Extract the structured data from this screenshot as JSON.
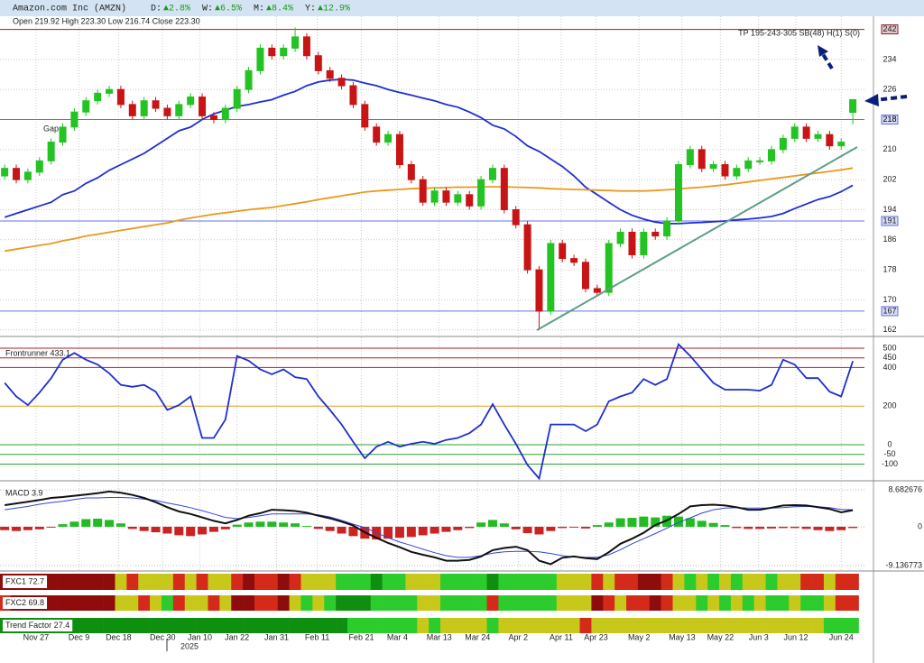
{
  "chart_data": [
    {
      "type": "candlestick",
      "title": "Amazon.com Inc (AMZN)",
      "changes": [
        {
          "period": "D:",
          "change": "▲2.8%"
        },
        {
          "period": "W:",
          "change": "▲6.5%"
        },
        {
          "period": "M:",
          "change": "▲8.4%"
        },
        {
          "period": "Y:",
          "change": "▲12.9%"
        }
      ],
      "ohlc_text": "Open 219.92  High 223.30  Low 216.74  Close 223.30",
      "annotations": [
        "Gap",
        "TP 195-243-305 SB(48) H(1) S(0)"
      ],
      "year_label": "2025",
      "up_color": "#22c322",
      "down_color": "#c81414",
      "open": [
        203,
        205,
        202,
        204,
        207,
        212,
        216,
        220,
        223,
        225,
        226,
        222,
        219,
        223,
        221,
        219,
        222,
        224,
        219,
        218,
        221,
        226,
        231,
        237,
        235,
        237,
        240,
        235,
        231,
        229,
        227,
        222,
        216,
        212,
        214,
        206,
        202,
        196,
        199,
        196,
        198,
        195,
        202,
        205,
        194,
        190,
        178,
        167,
        185,
        181,
        180,
        173,
        172,
        185,
        188,
        182,
        188,
        187,
        191,
        206,
        210,
        205,
        206,
        203,
        205,
        207,
        207,
        210,
        213,
        216,
        213,
        214,
        211,
        219.92
      ],
      "high": [
        206,
        206,
        205,
        208,
        213,
        217,
        221,
        224,
        226,
        227,
        227,
        223,
        224,
        224,
        222,
        223,
        225,
        225,
        220,
        222,
        227,
        232,
        238,
        238,
        238,
        242.5,
        241,
        236,
        232,
        230,
        228,
        223,
        217,
        215,
        215,
        207,
        203,
        200,
        200,
        199,
        199,
        203,
        206,
        206,
        195,
        191,
        179,
        186,
        186,
        182,
        181,
        174,
        186,
        189,
        189,
        189,
        189,
        192,
        207,
        211,
        211,
        207,
        207,
        206,
        208,
        208,
        211,
        214,
        217,
        217,
        215,
        215,
        213,
        223.3
      ],
      "low": [
        202,
        201,
        201,
        203,
        206,
        211,
        215,
        219,
        222,
        224,
        221,
        218,
        218,
        220,
        218,
        218,
        221,
        218,
        217,
        217,
        220,
        225,
        230,
        234,
        234,
        236,
        234,
        230,
        228,
        226,
        221,
        215,
        211,
        211,
        205,
        201,
        195,
        195,
        195,
        195,
        194,
        194,
        201,
        193,
        189,
        177,
        162,
        166,
        180,
        179,
        172,
        171,
        171,
        184,
        181,
        181,
        186,
        186,
        190,
        205,
        204,
        204,
        202,
        202,
        204,
        206,
        206,
        209,
        212,
        212,
        212,
        210,
        210,
        216.74
      ],
      "close": [
        205,
        202,
        204,
        207,
        212,
        216,
        220,
        223,
        225,
        226,
        222,
        219,
        223,
        221,
        219,
        222,
        224,
        219,
        218,
        221,
        226,
        231,
        237,
        235,
        237,
        240,
        235,
        231,
        229,
        227,
        222,
        216,
        212,
        214,
        206,
        202,
        196,
        199,
        196,
        198,
        195,
        202,
        205,
        194,
        190,
        178,
        167,
        185,
        181,
        180,
        173,
        172,
        185,
        188,
        182,
        188,
        187,
        191,
        206,
        210,
        205,
        206,
        203,
        205,
        207,
        207,
        210,
        213,
        216,
        213,
        214,
        211,
        212,
        223.3
      ],
      "moving_averages": [
        {
          "color": "#1f2fd0",
          "values": [
            192,
            193,
            194,
            195,
            196,
            198,
            199,
            201,
            202.5,
            204.5,
            206,
            207.5,
            209,
            211,
            213,
            215,
            216,
            218,
            219.5,
            220.5,
            221.5,
            222,
            222.7,
            223.3,
            224.5,
            225.5,
            227,
            228,
            228.5,
            228.7,
            228.5,
            227.7,
            227,
            226,
            225.2,
            224.5,
            223.7,
            223,
            222,
            221.3,
            220,
            218.5,
            216.5,
            215.5,
            213.5,
            211,
            209.5,
            207.5,
            205.5,
            203,
            200,
            198,
            196,
            194,
            192.5,
            191.5,
            190.7,
            190.3,
            190.3,
            190.5,
            190.6,
            190.8,
            191,
            191.3,
            191.5,
            191.8,
            192.2,
            193,
            194.3,
            195.5,
            196.7,
            197.5,
            198.8,
            200.5
          ]
        },
        {
          "color": "#e89a20",
          "values": [
            183,
            183.5,
            184,
            184.5,
            185,
            185.7,
            186.3,
            187,
            187.5,
            188,
            188.5,
            189,
            189.5,
            190,
            190.5,
            191.2,
            191.8,
            192.3,
            192.8,
            193.2,
            193.6,
            194,
            194.3,
            194.6,
            195.1,
            195.6,
            196.1,
            196.7,
            197.2,
            197.7,
            198.2,
            198.7,
            199,
            199.2,
            199.4,
            199.6,
            199.7,
            199.8,
            199.9,
            200,
            200,
            200.1,
            200.1,
            200.1,
            200,
            199.9,
            199.8,
            199.6,
            199.5,
            199.4,
            199.3,
            199.2,
            199.1,
            199,
            199,
            199,
            199.1,
            199.3,
            199.5,
            199.8,
            200,
            200.3,
            200.6,
            201,
            201.4,
            201.8,
            202.2,
            202.6,
            203,
            203.4,
            203.8,
            204.2,
            204.6,
            205.1
          ]
        }
      ],
      "levels": [
        {
          "value": 242,
          "color": "#8b2030"
        },
        {
          "value": 218,
          "color": "#6070e0"
        },
        {
          "value": 191,
          "color": "#6070e0"
        },
        {
          "value": 167,
          "color": "#6070e0"
        }
      ],
      "xlim": [
        -0.4,
        74
      ],
      "xticks": [
        {
          "value": 2.7,
          "label": "Nov 27"
        },
        {
          "value": 6.4,
          "label": "Dec 9"
        },
        {
          "value": 9.8,
          "label": "Dec 18"
        },
        {
          "value": 13.6,
          "label": "Dec 30"
        },
        {
          "value": 16.8,
          "label": "Jan 10"
        },
        {
          "value": 20,
          "label": "Jan 22"
        },
        {
          "value": 23.4,
          "label": "Jan 31"
        },
        {
          "value": 26.9,
          "label": "Feb 11"
        },
        {
          "value": 30.7,
          "label": "Feb 21"
        },
        {
          "value": 33.8,
          "label": "Mar 4"
        },
        {
          "value": 37.4,
          "label": "Mar 13"
        },
        {
          "value": 40.7,
          "label": "Mar 24"
        },
        {
          "value": 44.2,
          "label": "Apr 2"
        },
        {
          "value": 47.9,
          "label": "Apr 11"
        },
        {
          "value": 50.9,
          "label": "Apr 23"
        },
        {
          "value": 54.6,
          "label": "May 2"
        },
        {
          "value": 58.3,
          "label": "May 13"
        },
        {
          "value": 61.6,
          "label": "May 22"
        },
        {
          "value": 64.9,
          "label": "Jun 3"
        },
        {
          "value": 68.1,
          "label": "Jun 12"
        },
        {
          "value": 72,
          "label": "Jun 24"
        }
      ],
      "ylim": [
        160.5,
        245.5
      ],
      "yticks": [
        162,
        170,
        178,
        186,
        194,
        202,
        210,
        218,
        226,
        234
      ],
      "grid": true
    },
    {
      "type": "line",
      "title": "Frontrunner 433.1",
      "color": "#1f2fd0",
      "values": [
        320,
        250,
        205,
        270,
        345,
        440,
        475,
        440,
        415,
        370,
        310,
        300,
        310,
        275,
        180,
        205,
        250,
        35,
        35,
        130,
        460,
        435,
        390,
        365,
        390,
        350,
        340,
        250,
        180,
        105,
        15,
        -70,
        -10,
        15,
        -10,
        5,
        15,
        5,
        25,
        35,
        60,
        105,
        210,
        105,
        5,
        -105,
        -175,
        105,
        105,
        105,
        70,
        105,
        225,
        250,
        270,
        340,
        310,
        340,
        520,
        460,
        390,
        320,
        285,
        285,
        285,
        280,
        310,
        440,
        415,
        345,
        345,
        275,
        250,
        433.1
      ],
      "ylim": [
        -182,
        556
      ],
      "yticks": [
        500,
        450,
        400,
        200,
        0,
        -50,
        -100
      ],
      "tick_colors": [
        "#b02020",
        "#b02020",
        "#b02020",
        "#e0a020",
        "#30a030",
        "#30a030",
        "#30a030"
      ]
    },
    {
      "type": "macd",
      "title": "MACD 3.9",
      "macd_color": "#111111",
      "signal_color": "#3344dd",
      "positive_color": "#22bb22",
      "negative_color": "#cc2222",
      "macd": [
        5.1,
        5.5,
        5.9,
        6.3,
        6.8,
        7.0,
        7.3,
        7.6,
        7.9,
        8.3,
        8.0,
        7.5,
        6.8,
        5.8,
        4.6,
        3.6,
        3.0,
        2.2,
        1.4,
        0.8,
        1.6,
        2.6,
        3.2,
        4.0,
        3.9,
        3.7,
        3.3,
        2.6,
        2.0,
        1.2,
        0.3,
        -1.3,
        -2.6,
        -3.8,
        -4.8,
        -5.9,
        -6.6,
        -7.2,
        -8.0,
        -8.0,
        -7.8,
        -7.0,
        -5.5,
        -5.0,
        -4.7,
        -5.5,
        -8.0,
        -8.8,
        -7.3,
        -7.0,
        -7.4,
        -7.6,
        -6.0,
        -4.0,
        -2.8,
        -1.4,
        0.4,
        1.5,
        3.0,
        4.8,
        5.1,
        5.2,
        5.0,
        4.6,
        4.0,
        4.0,
        4.5,
        5.0,
        5.1,
        5.0,
        4.6,
        4.2,
        3.4,
        3.9
      ],
      "signal": [
        4.0,
        4.4,
        4.8,
        5.3,
        5.7,
        6.0,
        6.4,
        6.8,
        6.8,
        6.9,
        6.9,
        6.8,
        6.5,
        6.2,
        5.6,
        5.1,
        4.5,
        3.8,
        3.0,
        2.2,
        1.9,
        2.2,
        2.6,
        3.0,
        3.0,
        3.0,
        3.0,
        2.8,
        2.3,
        1.5,
        0.6,
        -0.2,
        -1.4,
        -2.6,
        -3.6,
        -4.4,
        -5.3,
        -6.1,
        -6.8,
        -7.2,
        -7.2,
        -6.8,
        -6.2,
        -5.9,
        -5.8,
        -5.8,
        -5.9,
        -6.3,
        -6.8,
        -7.1,
        -7.2,
        -7.2,
        -6.6,
        -5.4,
        -4.0,
        -2.8,
        -1.6,
        -0.3,
        1.0,
        2.1,
        3.2,
        4.0,
        4.4,
        4.5,
        4.4,
        4.4,
        4.4,
        4.5,
        4.7,
        4.8,
        4.7,
        4.5,
        4.1,
        4.0
      ],
      "histogram": [
        -0.8,
        -1,
        -0.8,
        -0.6,
        -0.2,
        0.6,
        1.2,
        1.8,
        1.9,
        1.6,
        0.8,
        -0.5,
        -1.0,
        -1.3,
        -1.6,
        -2.0,
        -2.2,
        -1.8,
        -1.2,
        -0.6,
        0.5,
        1.0,
        1.2,
        1.2,
        1.0,
        0.8,
        0.2,
        -0.5,
        -1.0,
        -1.6,
        -2.2,
        -2.8,
        -3.0,
        -2.8,
        -2.6,
        -2.4,
        -2.0,
        -1.6,
        -1.2,
        -0.8,
        -0.3,
        1.0,
        1.6,
        0.8,
        -0.6,
        -1.5,
        -1.8,
        -1.0,
        -0.3,
        -0.2,
        -0.4,
        0.4,
        1.0,
        2.0,
        2.1,
        2.4,
        2.2,
        2.6,
        2.4,
        2.0,
        1.4,
        0.9,
        0.4,
        -0.3,
        -0.5,
        -0.5,
        -0.4,
        -0.3,
        -0.3,
        -0.5,
        -0.8,
        -1.0,
        -0.8,
        -0.3
      ],
      "ylim": [
        -10.2,
        10.4
      ],
      "yticks": [
        8.682676,
        0,
        -9.136773
      ]
    },
    {
      "type": "heatmap",
      "palette": [
        "#8e0c0c",
        "#d42a1a",
        "#c8c81a",
        "#2ccc2c",
        "#0f8f0f"
      ],
      "rows": [
        {
          "name": "FXC1 72.7",
          "levels": [
            0,
            0,
            0,
            0,
            0,
            0,
            0,
            0,
            0,
            0,
            2,
            1,
            2,
            2,
            2,
            1,
            2,
            1,
            2,
            2,
            1,
            0,
            1,
            1,
            0,
            1,
            2,
            2,
            2,
            3,
            3,
            3,
            4,
            3,
            3,
            2,
            2,
            2,
            3,
            3,
            3,
            3,
            4,
            3,
            3,
            3,
            3,
            3,
            2,
            2,
            2,
            1,
            2,
            1,
            1,
            0,
            0,
            1,
            2,
            3,
            2,
            3,
            2,
            3,
            2,
            2,
            3,
            2,
            2,
            1,
            1,
            2,
            1,
            1
          ]
        },
        {
          "name": "FXC2 69.8",
          "levels": [
            1,
            0,
            0,
            0,
            0,
            0,
            0,
            0,
            0,
            0,
            2,
            2,
            1,
            2,
            3,
            1,
            2,
            2,
            1,
            2,
            0,
            0,
            1,
            1,
            0,
            2,
            3,
            2,
            3,
            4,
            4,
            4,
            3,
            3,
            3,
            3,
            2,
            2,
            3,
            3,
            3,
            3,
            1,
            3,
            3,
            3,
            3,
            3,
            2,
            2,
            2,
            0,
            1,
            2,
            1,
            1,
            0,
            1,
            2,
            2,
            3,
            2,
            3,
            2,
            3,
            2,
            3,
            3,
            2,
            3,
            3,
            2,
            1,
            1
          ]
        },
        {
          "name": "Trend Factor 27.4",
          "levels": [
            4,
            4,
            4,
            4,
            4,
            4,
            4,
            4,
            4,
            4,
            4,
            4,
            4,
            4,
            4,
            4,
            4,
            4,
            4,
            4,
            4,
            4,
            4,
            4,
            4,
            4,
            4,
            4,
            4,
            4,
            3,
            3,
            3,
            3,
            3,
            3,
            2,
            3,
            2,
            2,
            2,
            2,
            3,
            2,
            2,
            2,
            2,
            2,
            2,
            2,
            1,
            2,
            2,
            2,
            2,
            2,
            2,
            2,
            2,
            2,
            2,
            2,
            2,
            2,
            2,
            2,
            2,
            2,
            2,
            2,
            2,
            3,
            3,
            3
          ]
        }
      ]
    }
  ]
}
